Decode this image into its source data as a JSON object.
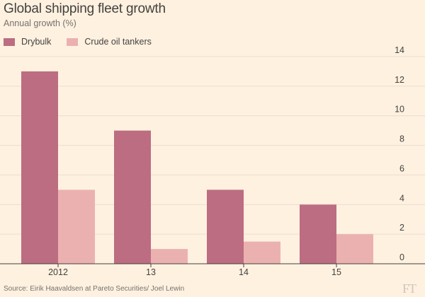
{
  "chart_data": {
    "type": "bar",
    "title": "Global shipping fleet growth",
    "subtitle": "Annual growth (%)",
    "categories": [
      "2012",
      "13",
      "14",
      "15"
    ],
    "series": [
      {
        "name": "Drybulk",
        "values": [
          13,
          9,
          5,
          4
        ],
        "color": "#bc6d81"
      },
      {
        "name": "Crude oil tankers",
        "values": [
          5,
          1,
          1.5,
          2
        ],
        "color": "#ebb1b0"
      }
    ],
    "ylim": [
      0,
      14
    ],
    "yticks": [
      "0",
      "2",
      "4",
      "6",
      "8",
      "10",
      "12",
      "14"
    ],
    "y_axis_side": "right",
    "grid": true,
    "legend": "top-left",
    "xlabel": "",
    "ylabel": ""
  },
  "source": "Source: Eirik Haavaldsen at Pareto Securities/ Joel Lewin",
  "logo": "FT",
  "colors": {
    "background": "#fff1e0",
    "grid": "#e9decf",
    "axis": "#43413e",
    "text": "#43413e"
  }
}
